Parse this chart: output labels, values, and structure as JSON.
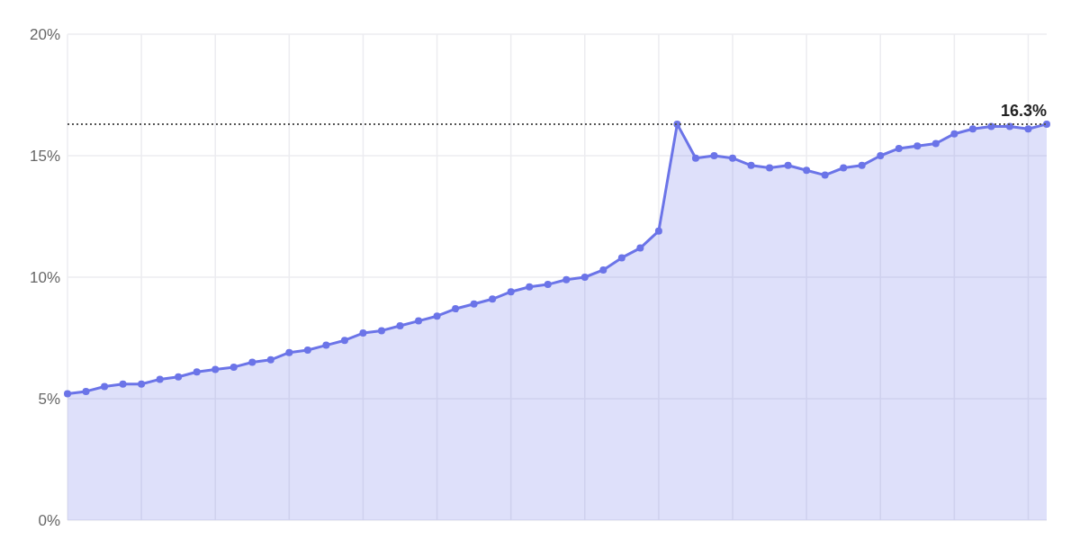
{
  "chart_data": {
    "type": "area",
    "categories": [
      null,
      null,
      null,
      null,
      null,
      null,
      null,
      null,
      null,
      null,
      null,
      null,
      null,
      null,
      null,
      null,
      null,
      null,
      null,
      null,
      null,
      null,
      null,
      null,
      null,
      null,
      null,
      null,
      null,
      null,
      null,
      null,
      null,
      null,
      null,
      null,
      null,
      null,
      null,
      null,
      null,
      null,
      null,
      null,
      null,
      null,
      null,
      null,
      null,
      null,
      null,
      null,
      null,
      null
    ],
    "series": [
      {
        "color": "#6b74e8",
        "values": [
          5.2,
          5.3,
          5.5,
          5.6,
          5.6,
          5.8,
          5.9,
          6.1,
          6.2,
          6.3,
          6.5,
          6.6,
          6.9,
          7.0,
          7.2,
          7.4,
          7.7,
          7.8,
          8.0,
          8.2,
          8.4,
          8.7,
          8.9,
          9.1,
          9.4,
          9.6,
          9.7,
          9.9,
          10.0,
          10.3,
          10.8,
          11.2,
          11.9,
          16.3,
          14.9,
          15.0,
          14.9,
          14.6,
          14.5,
          14.6,
          14.4,
          14.2,
          14.5,
          14.6,
          15.0,
          15.3,
          15.4,
          15.5,
          15.9,
          16.1,
          16.2,
          16.2,
          16.1,
          16.3
        ]
      }
    ],
    "ylim": [
      0,
      20
    ],
    "yticks": [
      {
        "value": 0,
        "label": "0%"
      },
      {
        "value": 5,
        "label": "5%"
      },
      {
        "value": 10,
        "label": "10%"
      },
      {
        "value": 15,
        "label": "15%"
      },
      {
        "value": 20,
        "label": "20%"
      }
    ],
    "grid": true,
    "marker": "circle",
    "ref_lines": [
      {
        "axis": "y",
        "value": 16.3,
        "label": "16.3%",
        "color": "#555555",
        "line_style": "dotted"
      }
    ]
  }
}
